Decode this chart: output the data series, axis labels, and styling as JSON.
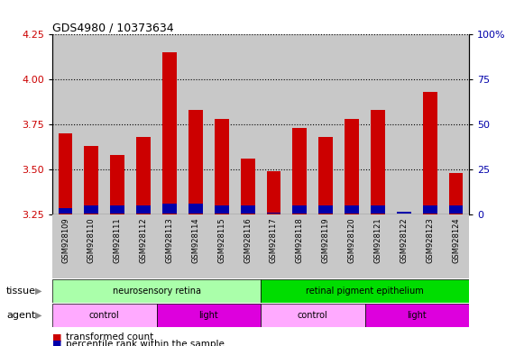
{
  "title": "GDS4980 / 10373634",
  "samples": [
    "GSM928109",
    "GSM928110",
    "GSM928111",
    "GSM928112",
    "GSM928113",
    "GSM928114",
    "GSM928115",
    "GSM928116",
    "GSM928117",
    "GSM928118",
    "GSM928119",
    "GSM928120",
    "GSM928121",
    "GSM928122",
    "GSM928123",
    "GSM928124"
  ],
  "red_values": [
    3.7,
    3.63,
    3.58,
    3.68,
    4.15,
    3.83,
    3.78,
    3.56,
    3.49,
    3.73,
    3.68,
    3.78,
    3.83,
    3.25,
    3.93,
    3.48
  ],
  "blue_values_pct": [
    7,
    10,
    10,
    10,
    12,
    12,
    10,
    10,
    1,
    10,
    10,
    10,
    10,
    2,
    10,
    10
  ],
  "y_min": 3.25,
  "y_max": 4.25,
  "y_ticks_left": [
    3.25,
    3.5,
    3.75,
    4.0,
    4.25
  ],
  "y_ticks_right": [
    0,
    25,
    50,
    75,
    100
  ],
  "bar_color_red": "#CC0000",
  "bar_color_blue": "#0000AA",
  "bg_color": "#C8C8C8",
  "tissue_groups": [
    {
      "label": "neurosensory retina",
      "start": 0,
      "end": 8,
      "color": "#AAFFAA"
    },
    {
      "label": "retinal pigment epithelium",
      "start": 8,
      "end": 16,
      "color": "#00DD00"
    }
  ],
  "agent_groups": [
    {
      "label": "control",
      "start": 0,
      "end": 4,
      "color": "#FFAAFF"
    },
    {
      "label": "light",
      "start": 4,
      "end": 8,
      "color": "#DD00DD"
    },
    {
      "label": "control",
      "start": 8,
      "end": 12,
      "color": "#FFAAFF"
    },
    {
      "label": "light",
      "start": 12,
      "end": 16,
      "color": "#DD00DD"
    }
  ],
  "legend_items": [
    {
      "label": "transformed count",
      "color": "#CC0000"
    },
    {
      "label": "percentile rank within the sample",
      "color": "#0000AA"
    }
  ],
  "tissue_label": "tissue",
  "agent_label": "agent",
  "dotted_grid_color": "black",
  "left_tick_color": "#CC0000",
  "right_tick_color": "#0000AA"
}
